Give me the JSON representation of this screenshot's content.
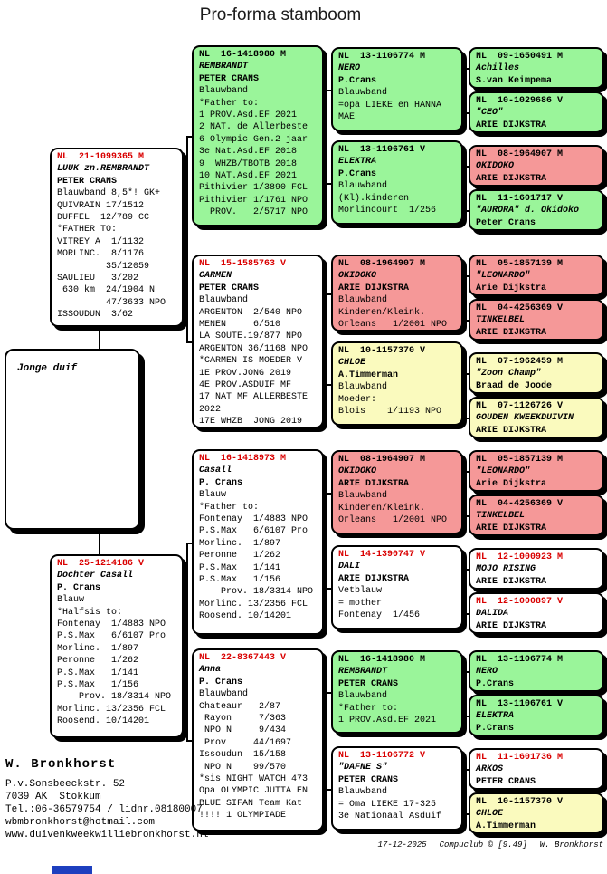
{
  "title": "Pro-forma stamboom",
  "subject_label": "Jonge duif",
  "colors": {
    "white": "#ffffff",
    "green": "#9af59a",
    "pink": "#f59898",
    "yellow": "#fafabe",
    "ring_red": "#d90000",
    "ring_black": "#000000"
  },
  "pedigree": {
    "parents": [
      {
        "ring": "NL  21-1099365 M",
        "name": "LUUK zn.REMBRANDT",
        "owner": "PETER CRANS",
        "color": "white",
        "ring_color": "red",
        "lines": [
          "Blauwband 8,5*! GK+",
          "QUIVRAIN 17/1512",
          "DUFFEL  12/789 CC",
          "*FATHER TO:",
          "VITREY A  1/1132",
          "MORLINC.  8/1176",
          "         35/12059",
          "SAULIEU   3/202",
          " 630 km  24/1904 N",
          "         47/3633 NPO",
          "ISSOUDUN  3/62"
        ]
      },
      {
        "ring": "NL  25-1214186 V",
        "name": "Dochter Casall",
        "owner": "P. Crans",
        "color": "white",
        "ring_color": "red",
        "lines": [
          "Blauw",
          "*Halfsis to:",
          "Fontenay  1/4883 NPO",
          "P.S.Max   6/6107 Pro",
          "Morlinc.  1/897",
          "Peronne   1/262",
          "P.S.Max   1/141",
          "P.S.Max   1/156",
          "    Prov. 18/3314 NPO",
          "Morlinc. 13/2356 FCL",
          "Roosend. 10/14201"
        ]
      }
    ],
    "grandparents": [
      {
        "ring": "NL  16-1418980 M",
        "name": "REMBRANDT",
        "owner": "PETER CRANS",
        "color": "green",
        "ring_color": "black",
        "lines": [
          "Blauwband",
          "*Father to:",
          "1 PROV.Asd.EF 2021",
          "2 NAT. de Allerbeste",
          "6 Olympic Gen.2 jaar",
          "3e Nat.Asd.EF 2018",
          "9  WHZB/TBOTB 2018",
          "10 NAT.Asd.EF 2021",
          "Pithivier 1/3890 FCL",
          "Pithivier 1/1761 NPO",
          "  PROV.   2/5717 NPO"
        ]
      },
      {
        "ring": "NL  15-1585763 V",
        "name": "CARMEN",
        "owner": "PETER CRANS",
        "color": "white",
        "ring_color": "red",
        "lines": [
          "Blauwband",
          "ARGENTON  2/540 NPO",
          "MENEN     6/510",
          "LA SOUTE.19/877 NPO",
          "ARGENTON 36/1168 NPO",
          "*CARMEN IS MOEDER V",
          "1E PROV.JONG 2019",
          "4E PROV.ASDUIF MF",
          "17 NAT MF ALLERBESTE",
          "2022",
          "17E WHZB  JONG 2019"
        ]
      },
      {
        "ring": "NL  16-1418973 M",
        "name": "Casall",
        "owner": "P. Crans",
        "color": "white",
        "ring_color": "red",
        "lines": [
          "Blauw",
          "*Father to:",
          "Fontenay  1/4883 NPO",
          "P.S.Max   6/6107 Pro",
          "Morlinc.  1/897",
          "Peronne   1/262",
          "P.S.Max   1/141",
          "P.S.Max   1/156",
          "    Prov. 18/3314 NPO",
          "Morlinc. 13/2356 FCL",
          "Roosend. 10/14201"
        ]
      },
      {
        "ring": "NL  22-8367443 V",
        "name": "Anna",
        "owner": "P. Crans",
        "color": "white",
        "ring_color": "red",
        "lines": [
          "Blauwband",
          "Chateaur   2/87",
          " Rayon     7/363",
          " NPO N     9/434",
          " Prov     44/1697",
          "Issoudun  15/158",
          " NPO N    99/570",
          "*sis NIGHT WATCH 473",
          "Opa OLYMPIC JUTTA EN",
          "BLUE SIFAN Team Kat",
          "!!!! 1 OLYMPIADE"
        ]
      }
    ],
    "great_grandparents": [
      {
        "ring": "NL  13-1106774 M",
        "name": "NERO",
        "owner": "P.Crans",
        "color": "green",
        "ring_color": "black",
        "lines": [
          "Blauwband",
          "=opa LIEKE en HANNA",
          "MAE"
        ]
      },
      {
        "ring": "NL  13-1106761 V",
        "name": "ELEKTRA",
        "owner": "P.Crans",
        "color": "green",
        "ring_color": "black",
        "lines": [
          "Blauwband",
          "(Kl).kinderen",
          "Morlincourt  1/256"
        ]
      },
      {
        "ring": "NL  08-1964907 M",
        "name": "OKIDOKO",
        "owner": "ARIE DIJKSTRA",
        "color": "pink",
        "ring_color": "black",
        "lines": [
          "Blauwband",
          "Kinderen/Kleink.",
          "Orleans   1/2001 NPO"
        ]
      },
      {
        "ring": "NL  10-1157370 V",
        "name": "CHLOE",
        "owner": "A.Timmerman",
        "color": "yellow",
        "ring_color": "black",
        "lines": [
          "Blauwband",
          "Moeder:",
          "Blois    1/1193 NPO"
        ]
      },
      {
        "ring": "NL  08-1964907 M",
        "name": "OKIDOKO",
        "owner": "ARIE DIJKSTRA",
        "color": "pink",
        "ring_color": "black",
        "lines": [
          "Blauwband",
          "Kinderen/Kleink.",
          "Orleans   1/2001 NPO"
        ]
      },
      {
        "ring": "NL  14-1390747 V",
        "name": "DALI",
        "owner": "ARIE DIJKSTRA",
        "color": "white",
        "ring_color": "red",
        "lines": [
          "Vetblauw",
          "= mother",
          "Fontenay  1/456"
        ]
      },
      {
        "ring": "NL  16-1418980 M",
        "name": "REMBRANDT",
        "owner": "PETER CRANS",
        "color": "green",
        "ring_color": "black",
        "lines": [
          "Blauwband",
          "*Father to:",
          "1 PROV.Asd.EF 2021"
        ]
      },
      {
        "ring": "NL  13-1106772 V",
        "name": "\"DAFNE S\"",
        "owner": "PETER CRANS",
        "color": "white",
        "ring_color": "red",
        "lines": [
          "Blauwband",
          "= Oma LIEKE 17-325",
          "3e Nationaal Asduif"
        ]
      }
    ],
    "great_great_grandparents": [
      {
        "ring": "NL  09-1650491 M",
        "name": "Achilles",
        "owner": "S.van Keimpema",
        "color": "green",
        "ring_color": "black",
        "lines": []
      },
      {
        "ring": "NL  10-1029686 V",
        "name": "\"CEO\"",
        "owner": "ARIE DIJKSTRA",
        "color": "green",
        "ring_color": "black",
        "lines": []
      },
      {
        "ring": "NL  08-1964907 M",
        "name": "OKIDOKO",
        "owner": "ARIE DIJKSTRA",
        "color": "pink",
        "ring_color": "black",
        "lines": []
      },
      {
        "ring": "NL  11-1601717 V",
        "name": "\"AURORA\" d. Okidoko",
        "owner": "Peter Crans",
        "color": "green",
        "ring_color": "black",
        "lines": []
      },
      {
        "ring": "NL  05-1857139 M",
        "name": "\"LEONARDO\"",
        "owner": "Arie Dijkstra",
        "color": "pink",
        "ring_color": "black",
        "lines": []
      },
      {
        "ring": "NL  04-4256369 V",
        "name": "TINKELBEL",
        "owner": "ARIE DIJKSTRA",
        "color": "pink",
        "ring_color": "black",
        "lines": []
      },
      {
        "ring": "NL  07-1962459 M",
        "name": "\"Zoon Champ\"",
        "owner": "Braad de Joode",
        "color": "yellow",
        "ring_color": "black",
        "lines": []
      },
      {
        "ring": "NL  07-1126726 V",
        "name": "GOUDEN KWEEKDUIVIN",
        "owner": "ARIE DIJKSTRA",
        "color": "yellow",
        "ring_color": "black",
        "lines": []
      },
      {
        "ring": "NL  05-1857139 M",
        "name": "\"LEONARDO\"",
        "owner": "Arie Dijkstra",
        "color": "pink",
        "ring_color": "black",
        "lines": []
      },
      {
        "ring": "NL  04-4256369 V",
        "name": "TINKELBEL",
        "owner": "ARIE DIJKSTRA",
        "color": "pink",
        "ring_color": "black",
        "lines": []
      },
      {
        "ring": "NL  12-1000923 M",
        "name": "MOJO RISING",
        "owner": "ARIE DIJKSTRA",
        "color": "white",
        "ring_color": "red",
        "lines": []
      },
      {
        "ring": "NL  12-1000897 V",
        "name": "DALIDA",
        "owner": "ARIE DIJKSTRA",
        "color": "white",
        "ring_color": "red",
        "lines": []
      },
      {
        "ring": "NL  13-1106774 M",
        "name": "NERO",
        "owner": "P.Crans",
        "color": "green",
        "ring_color": "black",
        "lines": []
      },
      {
        "ring": "NL  13-1106761 V",
        "name": "ELEKTRA",
        "owner": "P.Crans",
        "color": "green",
        "ring_color": "black",
        "lines": []
      },
      {
        "ring": "NL  11-1601736 M",
        "name": "ARKOS",
        "owner": "PETER CRANS",
        "color": "white",
        "ring_color": "red",
        "lines": []
      },
      {
        "ring": "NL  10-1157370 V",
        "name": "CHLOE",
        "owner": "A.Timmerman",
        "color": "yellow",
        "ring_color": "black",
        "lines": []
      }
    ]
  },
  "breeder": {
    "name": "W. Bronkhorst",
    "address_lines": [
      "P.v.Sonsbeeckstr. 52",
      "7039 AK  Stokkum",
      "Tel.:06-36579754 / lidnr.08180007",
      "wbmbronkhorst@hotmail.com",
      "www.duivenkweekwilliebronkhorst.nl"
    ]
  },
  "footer": {
    "date": "17-12-2025",
    "program": "Compuclub © [9.49]",
    "owner": "W. Bronkhorst"
  }
}
